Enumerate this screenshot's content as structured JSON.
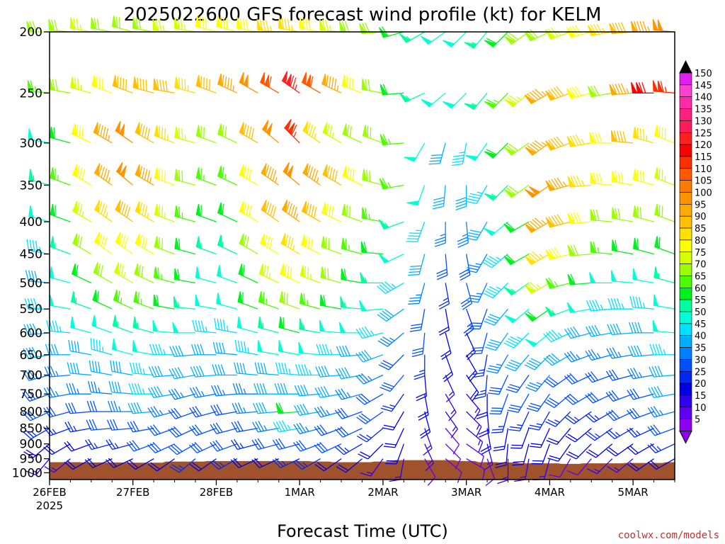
{
  "chart_data": {
    "type": "wind_barb_profile",
    "title": "2025022600 GFS forecast wind profile (kt) for KELM",
    "xlabel": "Forecast Time (UTC)",
    "ylabel": "",
    "credit": "coolwx.com/models",
    "x_ticks": [
      "26FEB",
      "27FEB",
      "28FEB",
      "1MAR",
      "2MAR",
      "3MAR",
      "4MAR",
      "5MAR"
    ],
    "x_year": "2025",
    "x_range_days": [
      0,
      7.5
    ],
    "y_ticks": [
      200,
      250,
      300,
      350,
      400,
      450,
      500,
      550,
      600,
      650,
      700,
      750,
      800,
      850,
      900,
      950,
      1000
    ],
    "y_range_hpa": [
      200,
      1025
    ],
    "y_scale": "log",
    "colorbar": {
      "labels": [
        150,
        145,
        140,
        135,
        130,
        125,
        120,
        115,
        110,
        105,
        100,
        95,
        90,
        85,
        80,
        75,
        70,
        65,
        60,
        55,
        50,
        45,
        40,
        35,
        30,
        25,
        20,
        15,
        10,
        5
      ],
      "colors": [
        "#e020f0",
        "#ff40d0",
        "#ff2aa8",
        "#ff1f80",
        "#ff1c5a",
        "#ff2020",
        "#ff0000",
        "#ff3000",
        "#ff5a00",
        "#ff7a00",
        "#ff9400",
        "#ffaa00",
        "#ffc000",
        "#ffe000",
        "#ffff00",
        "#d8ff00",
        "#9cff00",
        "#4cff00",
        "#00f020",
        "#00ffa0",
        "#00ffd8",
        "#00e0ff",
        "#00b0ff",
        "#0080ff",
        "#0050ff",
        "#0028f0",
        "#0000e0",
        "#3000f0",
        "#6000f0",
        "#9000f0"
      ]
    },
    "levels_hpa": [
      200,
      250,
      300,
      350,
      400,
      450,
      500,
      550,
      600,
      650,
      700,
      750,
      800,
      850,
      900,
      950
    ],
    "times_days": [
      0,
      0.25,
      0.5,
      0.75,
      1,
      1.25,
      1.5,
      1.75,
      2,
      2.25,
      2.5,
      2.75,
      3,
      3.25,
      3.5,
      3.75,
      4,
      4.25,
      4.5,
      4.75,
      5,
      5.25,
      5.5,
      5.75,
      6,
      6.25,
      6.5,
      6.75,
      7,
      7.25,
      7.5
    ],
    "speed_kt": [
      [
        70,
        72,
        75,
        72,
        70,
        72,
        75,
        74,
        78,
        82,
        80,
        83,
        85,
        80,
        75,
        72,
        68,
        60,
        55,
        50,
        50,
        55,
        62,
        68,
        72,
        75,
        80,
        85,
        90,
        95,
        100
      ],
      [
        65,
        72,
        75,
        80,
        88,
        90,
        92,
        84,
        88,
        95,
        100,
        110,
        125,
        110,
        95,
        80,
        72,
        62,
        55,
        50,
        50,
        55,
        65,
        75,
        95,
        90,
        80,
        70,
        95,
        120,
        115
      ],
      [
        50,
        58,
        80,
        95,
        102,
        90,
        85,
        75,
        70,
        68,
        90,
        100,
        115,
        85,
        75,
        72,
        68,
        65,
        50,
        40,
        45,
        50,
        60,
        70,
        95,
        92,
        85,
        80,
        88,
        85,
        80
      ],
      [
        55,
        65,
        82,
        95,
        100,
        95,
        80,
        68,
        65,
        64,
        80,
        95,
        100,
        95,
        88,
        80,
        72,
        65,
        50,
        40,
        40,
        45,
        55,
        70,
        100,
        95,
        85,
        80,
        82,
        78,
        75
      ],
      [
        50,
        62,
        75,
        85,
        90,
        85,
        75,
        65,
        60,
        62,
        78,
        90,
        95,
        90,
        80,
        72,
        65,
        55,
        45,
        35,
        35,
        40,
        50,
        62,
        95,
        88,
        80,
        70,
        72,
        70,
        68
      ],
      [
        45,
        55,
        68,
        78,
        82,
        78,
        70,
        62,
        55,
        55,
        70,
        80,
        85,
        80,
        72,
        65,
        58,
        48,
        38,
        30,
        30,
        35,
        45,
        60,
        85,
        78,
        70,
        65,
        62,
        60,
        60
      ],
      [
        40,
        50,
        60,
        70,
        75,
        72,
        65,
        58,
        50,
        52,
        62,
        75,
        80,
        75,
        68,
        60,
        55,
        45,
        35,
        25,
        28,
        35,
        45,
        55,
        75,
        65,
        58,
        52,
        50,
        48,
        55
      ],
      [
        45,
        48,
        55,
        62,
        66,
        65,
        60,
        55,
        50,
        50,
        58,
        66,
        70,
        66,
        60,
        55,
        50,
        40,
        30,
        22,
        25,
        32,
        42,
        50,
        62,
        55,
        48,
        45,
        44,
        45,
        50
      ],
      [
        42,
        44,
        48,
        52,
        55,
        56,
        52,
        48,
        45,
        46,
        52,
        55,
        58,
        56,
        52,
        48,
        44,
        36,
        28,
        20,
        22,
        30,
        38,
        44,
        48,
        44,
        40,
        40,
        40,
        42,
        48
      ],
      [
        38,
        40,
        42,
        45,
        48,
        50,
        46,
        42,
        42,
        42,
        46,
        48,
        50,
        48,
        46,
        42,
        38,
        32,
        24,
        18,
        20,
        26,
        34,
        38,
        40,
        38,
        36,
        36,
        36,
        38,
        45
      ],
      [
        35,
        36,
        38,
        40,
        42,
        44,
        42,
        38,
        38,
        38,
        40,
        42,
        45,
        44,
        42,
        38,
        35,
        28,
        22,
        16,
        18,
        24,
        30,
        32,
        34,
        32,
        32,
        32,
        32,
        36,
        42
      ],
      [
        32,
        33,
        34,
        36,
        38,
        44,
        40,
        36,
        35,
        35,
        36,
        38,
        40,
        40,
        38,
        35,
        32,
        25,
        20,
        15,
        16,
        22,
        28,
        30,
        30,
        28,
        30,
        30,
        30,
        32,
        38
      ],
      [
        28,
        30,
        30,
        32,
        34,
        38,
        36,
        32,
        32,
        32,
        34,
        38,
        60,
        40,
        36,
        32,
        28,
        22,
        18,
        14,
        15,
        20,
        25,
        26,
        26,
        25,
        26,
        26,
        28,
        30,
        34
      ],
      [
        24,
        26,
        26,
        28,
        30,
        32,
        32,
        30,
        30,
        30,
        30,
        34,
        45,
        36,
        32,
        28,
        25,
        20,
        16,
        12,
        13,
        18,
        22,
        22,
        22,
        22,
        22,
        24,
        24,
        26,
        30
      ],
      [
        20,
        22,
        22,
        24,
        26,
        28,
        28,
        28,
        28,
        28,
        26,
        30,
        32,
        32,
        28,
        24,
        22,
        18,
        14,
        11,
        12,
        16,
        20,
        20,
        18,
        18,
        18,
        20,
        22,
        22,
        26
      ],
      [
        14,
        16,
        18,
        20,
        18,
        22,
        22,
        24,
        22,
        24,
        20,
        22,
        24,
        24,
        20,
        18,
        16,
        14,
        12,
        10,
        10,
        12,
        14,
        14,
        14,
        12,
        12,
        14,
        16,
        18,
        20
      ]
    ],
    "direction_deg": [
      [
        270,
        275,
        280,
        280,
        285,
        280,
        275,
        280,
        285,
        285,
        280,
        275,
        280,
        280,
        275,
        270,
        265,
        255,
        240,
        235,
        225,
        220,
        225,
        235,
        245,
        250,
        255,
        260,
        265,
        270,
        275
      ],
      [
        275,
        280,
        285,
        290,
        290,
        285,
        280,
        285,
        290,
        295,
        300,
        300,
        305,
        300,
        295,
        290,
        280,
        265,
        245,
        230,
        225,
        220,
        225,
        230,
        240,
        250,
        255,
        260,
        265,
        270,
        275
      ],
      [
        280,
        285,
        295,
        300,
        305,
        300,
        290,
        285,
        290,
        295,
        300,
        310,
        315,
        305,
        300,
        295,
        290,
        265,
        210,
        195,
        190,
        215,
        225,
        235,
        235,
        250,
        260,
        270,
        275,
        285,
        290
      ],
      [
        285,
        290,
        300,
        305,
        310,
        300,
        290,
        285,
        290,
        295,
        300,
        305,
        310,
        305,
        300,
        295,
        285,
        260,
        200,
        185,
        180,
        210,
        225,
        235,
        235,
        255,
        265,
        275,
        280,
        285,
        290
      ],
      [
        285,
        290,
        300,
        305,
        305,
        300,
        290,
        285,
        290,
        295,
        300,
        305,
        305,
        300,
        295,
        290,
        280,
        250,
        200,
        180,
        175,
        210,
        230,
        240,
        240,
        255,
        265,
        275,
        280,
        285,
        290
      ],
      [
        280,
        290,
        300,
        305,
        305,
        300,
        290,
        285,
        290,
        295,
        300,
        300,
        300,
        295,
        290,
        285,
        275,
        245,
        195,
        175,
        170,
        210,
        230,
        240,
        240,
        255,
        265,
        275,
        280,
        285,
        290
      ],
      [
        275,
        285,
        295,
        300,
        300,
        295,
        285,
        280,
        285,
        290,
        295,
        295,
        295,
        290,
        285,
        280,
        270,
        240,
        195,
        170,
        165,
        205,
        225,
        235,
        240,
        255,
        265,
        270,
        275,
        280,
        285
      ],
      [
        270,
        280,
        290,
        295,
        295,
        290,
        280,
        275,
        280,
        285,
        290,
        290,
        290,
        285,
        280,
        275,
        265,
        235,
        190,
        170,
        160,
        200,
        220,
        230,
        235,
        250,
        260,
        265,
        270,
        275,
        280
      ],
      [
        265,
        275,
        285,
        290,
        290,
        285,
        275,
        270,
        275,
        280,
        285,
        285,
        285,
        280,
        275,
        270,
        255,
        230,
        185,
        165,
        155,
        195,
        215,
        225,
        230,
        245,
        255,
        260,
        265,
        270,
        275
      ],
      [
        260,
        270,
        280,
        285,
        285,
        280,
        270,
        265,
        270,
        275,
        280,
        280,
        280,
        275,
        270,
        265,
        250,
        225,
        180,
        160,
        150,
        190,
        210,
        220,
        225,
        240,
        250,
        255,
        260,
        265,
        270
      ],
      [
        255,
        265,
        275,
        280,
        280,
        275,
        265,
        260,
        265,
        270,
        275,
        275,
        275,
        270,
        265,
        260,
        245,
        220,
        175,
        155,
        145,
        185,
        205,
        215,
        220,
        235,
        245,
        250,
        255,
        260,
        265
      ],
      [
        250,
        260,
        270,
        275,
        275,
        270,
        260,
        255,
        260,
        265,
        270,
        270,
        270,
        265,
        260,
        255,
        240,
        215,
        170,
        150,
        140,
        180,
        200,
        210,
        215,
        230,
        240,
        245,
        250,
        255,
        260
      ],
      [
        245,
        255,
        265,
        270,
        270,
        265,
        255,
        250,
        255,
        260,
        265,
        265,
        265,
        260,
        255,
        250,
        235,
        210,
        165,
        145,
        135,
        175,
        195,
        205,
        210,
        225,
        235,
        240,
        245,
        250,
        255
      ],
      [
        240,
        250,
        260,
        265,
        265,
        260,
        250,
        245,
        250,
        255,
        260,
        260,
        260,
        255,
        250,
        245,
        230,
        205,
        160,
        140,
        130,
        170,
        190,
        200,
        205,
        220,
        230,
        235,
        240,
        245,
        250
      ],
      [
        230,
        240,
        250,
        255,
        255,
        250,
        245,
        240,
        245,
        250,
        255,
        255,
        255,
        250,
        245,
        240,
        225,
        200,
        155,
        135,
        125,
        165,
        185,
        195,
        200,
        215,
        225,
        230,
        235,
        240,
        245
      ],
      [
        220,
        230,
        240,
        245,
        245,
        240,
        235,
        230,
        235,
        240,
        245,
        245,
        245,
        240,
        235,
        230,
        215,
        190,
        150,
        130,
        120,
        160,
        180,
        190,
        195,
        210,
        220,
        225,
        230,
        235,
        240
      ]
    ],
    "terrain_hpa": [
      962,
      962,
      963,
      963,
      964,
      964,
      960,
      960,
      958,
      958,
      958,
      958,
      958,
      960,
      962,
      962,
      960,
      955,
      955,
      955,
      958,
      962,
      963,
      966,
      966,
      968,
      966,
      966,
      965,
      965,
      962
    ],
    "terrain_color": "#a0522d"
  }
}
